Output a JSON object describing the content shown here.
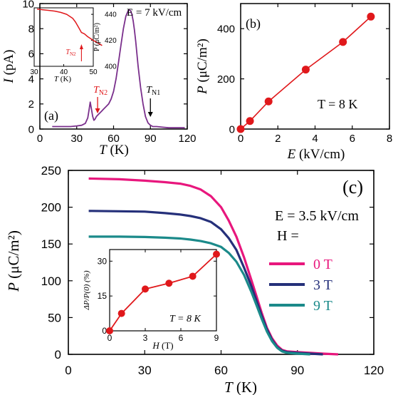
{
  "colors": {
    "purple": "#7a2f8c",
    "red": "#e0181b",
    "pink": "#e8177d",
    "navy": "#25307a",
    "teal": "#1b8a8a",
    "axis": "#000000"
  },
  "chart_data": [
    {
      "id": "a",
      "type": "line",
      "panel_label": "(a)",
      "xlabel_var": "T",
      "xlabel_unit": " (K)",
      "ylabel_var": "I",
      "ylabel_unit": " (pA)",
      "field_label": "E = 7 kV/cm",
      "xlim": [
        0,
        120
      ],
      "ylim": [
        0,
        10
      ],
      "xticks": [
        0,
        30,
        60,
        90,
        120
      ],
      "yticks": [
        0,
        2,
        4,
        6,
        8,
        10
      ],
      "annotations": [
        {
          "main": "T",
          "sub": "N2",
          "color": "red",
          "at_x": 47
        },
        {
          "main": "T",
          "sub": "N1",
          "color": "black",
          "at_x": 90
        }
      ],
      "series": [
        {
          "color": "purple",
          "x": [
            10,
            20,
            25,
            30,
            34,
            37,
            39,
            40,
            41,
            42,
            43,
            44,
            45,
            46,
            48,
            50,
            52,
            54,
            56,
            58,
            60,
            62,
            64,
            66,
            68,
            70,
            72,
            73,
            74,
            75,
            76,
            77,
            78,
            79,
            80,
            82,
            84,
            86,
            88,
            90,
            92,
            95,
            100,
            105,
            110,
            118
          ],
          "y": [
            0.2,
            0.2,
            0.2,
            0.25,
            0.3,
            0.45,
            0.9,
            1.5,
            2.15,
            1.6,
            1.0,
            0.7,
            0.8,
            1.0,
            1.2,
            1.4,
            1.6,
            1.8,
            2.0,
            2.4,
            3.0,
            4.0,
            5.3,
            6.7,
            8.0,
            9.0,
            9.45,
            9.5,
            9.4,
            9.1,
            8.6,
            7.9,
            7.0,
            6.0,
            5.0,
            3.3,
            2.0,
            1.0,
            0.5,
            0.3,
            0.2,
            0.2,
            0.15,
            0.1,
            0.1,
            0.1
          ]
        }
      ],
      "inset": {
        "type": "line",
        "ylabel": "P (μC/m²)",
        "xlabel_var": "T",
        "xlabel_unit": " (K)",
        "xlim": [
          30,
          50
        ],
        "ylim": [
          400,
          445
        ],
        "xticks": [
          30,
          40,
          50
        ],
        "yticks": [
          400,
          420,
          440
        ],
        "marker": {
          "main": "T",
          "sub": "N2",
          "at_x": 46
        },
        "series": [
          {
            "color": "red",
            "x": [
              31,
              33,
              35,
              37,
              39,
              41,
              43,
              44,
              45,
              46,
              47,
              48,
              50,
              53
            ],
            "y": [
              444,
              443.5,
              443,
              442.5,
              441.5,
              440,
              437,
              434,
              430,
              426,
              425,
              423,
              420,
              416
            ]
          }
        ]
      }
    },
    {
      "id": "b",
      "type": "line",
      "panel_label": "(b)",
      "xlabel_var": "E",
      "xlabel_unit": " (kV/cm)",
      "ylabel_var": "P",
      "ylabel_unit": " (μC/m²)",
      "temp_label": "T = 8 K",
      "xlim": [
        0,
        8
      ],
      "ylim": [
        0,
        500
      ],
      "xticks": [
        0,
        2,
        4,
        6,
        8
      ],
      "yticks": [
        0,
        200,
        400
      ],
      "series": [
        {
          "color": "red",
          "markers": true,
          "x": [
            0,
            0.5,
            1.5,
            3.5,
            5.5,
            7
          ],
          "y": [
            0,
            32,
            110,
            237,
            347,
            448
          ]
        }
      ]
    },
    {
      "id": "c",
      "type": "line",
      "panel_label": "(c)",
      "xlabel_var": "T",
      "xlabel_unit": " (K)",
      "ylabel_var": "P",
      "ylabel_unit": " (μC/m²)",
      "field_label": "E = 3.5 kV/cm",
      "h_label": "H =",
      "xlim": [
        0,
        120
      ],
      "ylim": [
        0,
        250
      ],
      "xticks": [
        0,
        30,
        60,
        90,
        120
      ],
      "yticks": [
        0,
        50,
        100,
        150,
        200,
        250
      ],
      "series": [
        {
          "name": "0 T",
          "color": "pink",
          "x": [
            8,
            20,
            30,
            38,
            44,
            48,
            52,
            56,
            60,
            63,
            66,
            69,
            72,
            74,
            76,
            78,
            80,
            82,
            84,
            86,
            90,
            95,
            100,
            106
          ],
          "y": [
            239,
            238,
            236,
            234,
            232,
            229,
            224,
            215,
            200,
            182,
            160,
            132,
            100,
            78,
            56,
            36,
            22,
            12,
            6,
            4,
            3,
            2,
            1,
            0
          ]
        },
        {
          "name": "3 T",
          "color": "navy",
          "x": [
            8,
            20,
            30,
            38,
            44,
            48,
            52,
            56,
            60,
            63,
            66,
            69,
            72,
            74,
            76,
            78,
            80,
            82,
            84,
            86,
            90,
            95,
            100
          ],
          "y": [
            195,
            194.5,
            194,
            192,
            190,
            188,
            185,
            180,
            170,
            158,
            142,
            118,
            92,
            72,
            52,
            34,
            20,
            10,
            5,
            3,
            2,
            1,
            0
          ]
        },
        {
          "name": "9 T",
          "color": "teal",
          "x": [
            8,
            20,
            30,
            38,
            44,
            48,
            52,
            56,
            60,
            63,
            66,
            69,
            72,
            74,
            76,
            78,
            80,
            82,
            84,
            86,
            90,
            95
          ],
          "y": [
            160,
            160,
            159.5,
            158.5,
            157.5,
            156,
            154,
            151,
            146,
            138,
            126,
            108,
            84,
            66,
            48,
            31,
            18,
            9,
            4,
            2,
            1,
            0
          ]
        }
      ],
      "inset": {
        "type": "line",
        "ylabel": "ΔP/P(0) (%)",
        "xlabel_var": "H",
        "xlabel_unit": " (T)",
        "temp_label": "T = 8 K",
        "xlim": [
          0,
          9
        ],
        "ylim": [
          0,
          35
        ],
        "xticks": [
          0,
          3,
          6,
          9
        ],
        "yticks": [
          0,
          15,
          30
        ],
        "series": [
          {
            "color": "red",
            "markers": true,
            "x": [
              0,
              1,
              3,
              5,
              7,
              9
            ],
            "y": [
              0,
              7.5,
              18,
              20.5,
              23.5,
              33
            ]
          }
        ]
      }
    }
  ]
}
